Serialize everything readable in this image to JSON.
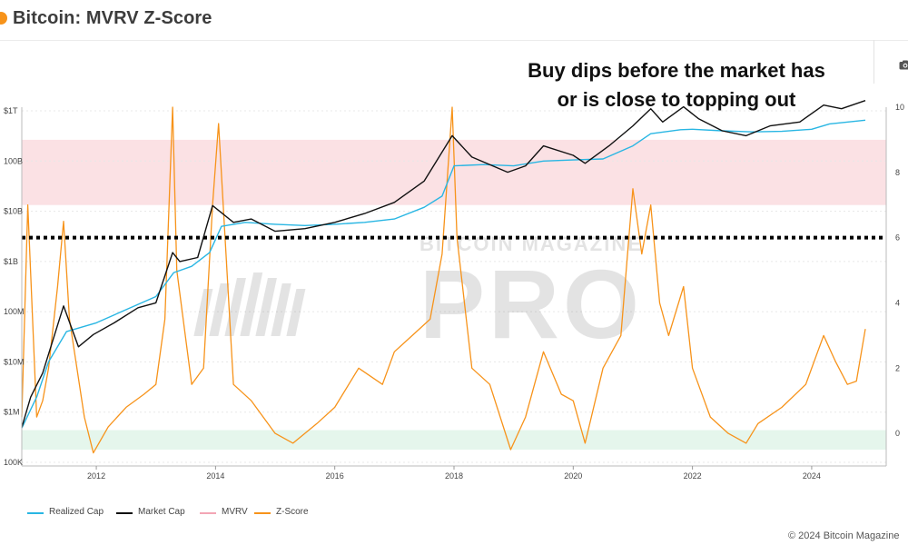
{
  "header": {
    "title": "Bitcoin: MVRV Z-Score"
  },
  "annotation": {
    "line1": "Buy dips before the market has",
    "line2": "or is close to topping out"
  },
  "watermark": {
    "top": "BITCOIN MAGAZINE",
    "main": "PRO"
  },
  "footer": {
    "copyright": "© 2024 Bitcoin Magazine"
  },
  "toolbar": {
    "icon": "camera-icon"
  },
  "colors": {
    "realized_cap": "#29b6e3",
    "market_cap": "#111111",
    "mvrv": "#f3a6b5",
    "z_score": "#f7931a",
    "red_zone": "#fbe1e4",
    "green_zone": "#e5f6ec",
    "threshold_line": "#000000"
  },
  "chart_data": {
    "type": "line",
    "title": "Bitcoin: MVRV Z-Score",
    "x_ticks": [
      "2012",
      "2014",
      "2016",
      "2018",
      "2020",
      "2022",
      "2024"
    ],
    "xlim": [
      2010.75,
      2025.25
    ],
    "y_left_ticks": [
      "100K",
      "$1M",
      "$10M",
      "100M",
      "$1B",
      "$10B",
      "100B",
      "$1T"
    ],
    "y_left_log_range": [
      5,
      12
    ],
    "y_right_ticks": [
      "0",
      "2",
      "4",
      "6",
      "8",
      "10"
    ],
    "ylim_right": [
      -1,
      10
    ],
    "zones": {
      "red": [
        7,
        9
      ],
      "green": [
        -0.5,
        0.1
      ]
    },
    "threshold_line": {
      "axis": "right",
      "value": 6,
      "style": "dotted"
    },
    "grid": true,
    "legend_position": "bottom-left",
    "legend": [
      "Realized Cap",
      "Market Cap",
      "MVRV",
      "Z-Score"
    ],
    "series": [
      {
        "name": "Realized Cap",
        "axis": "left-log",
        "x": [
          2010.75,
          2011.0,
          2011.2,
          2011.5,
          2012.0,
          2012.5,
          2013.0,
          2013.3,
          2013.6,
          2013.9,
          2014.1,
          2014.5,
          2015.0,
          2015.5,
          2016.0,
          2016.5,
          2017.0,
          2017.5,
          2017.8,
          2018.0,
          2018.5,
          2019.0,
          2019.5,
          2020.0,
          2020.5,
          2021.0,
          2021.3,
          2021.8,
          2022.0,
          2022.5,
          2023.0,
          2023.5,
          2024.0,
          2024.3,
          2024.9
        ],
        "values": [
          480000.0,
          2000000.0,
          10000000.0,
          40000000.0,
          60000000.0,
          110000000.0,
          200000000.0,
          600000000.0,
          800000000.0,
          1500000000.0,
          5000000000.0,
          6000000000.0,
          5500000000.0,
          5200000000.0,
          5500000000.0,
          6000000000.0,
          7000000000.0,
          12000000000.0,
          20000000000.0,
          80000000000.0,
          85000000000.0,
          80000000000.0,
          100000000000.0,
          105000000000.0,
          110000000000.0,
          200000000000.0,
          350000000000.0,
          420000000000.0,
          430000000000.0,
          400000000000.0,
          380000000000.0,
          390000000000.0,
          430000000000.0,
          550000000000.0,
          650000000000.0
        ]
      },
      {
        "name": "Market Cap",
        "axis": "left-log",
        "x": [
          2010.75,
          2010.9,
          2011.1,
          2011.45,
          2011.7,
          2011.95,
          2012.3,
          2012.7,
          2013.0,
          2013.28,
          2013.4,
          2013.7,
          2013.95,
          2014.3,
          2014.6,
          2015.0,
          2015.5,
          2016.0,
          2016.5,
          2017.0,
          2017.5,
          2017.97,
          2018.3,
          2018.9,
          2019.2,
          2019.5,
          2020.0,
          2020.2,
          2020.6,
          2021.0,
          2021.3,
          2021.5,
          2021.85,
          2022.1,
          2022.5,
          2022.9,
          2023.3,
          2023.8,
          2024.2,
          2024.5,
          2024.9
        ],
        "values": [
          500000.0,
          2000000.0,
          6000000.0,
          130000000.0,
          20000000.0,
          35000000.0,
          60000000.0,
          120000000.0,
          150000000.0,
          1500000000.0,
          1000000000.0,
          1200000000.0,
          13000000000.0,
          6000000000.0,
          7000000000.0,
          4000000000.0,
          4500000000.0,
          6000000000.0,
          9000000000.0,
          15000000000.0,
          40000000000.0,
          320000000000.0,
          120000000000.0,
          60000000000.0,
          80000000000.0,
          200000000000.0,
          130000000000.0,
          90000000000.0,
          200000000000.0,
          500000000000.0,
          1100000000000.0,
          600000000000.0,
          1200000000000.0,
          700000000000.0,
          400000000000.0,
          320000000000.0,
          500000000000.0,
          600000000000.0,
          1300000000000.0,
          1100000000000.0,
          1600000000000.0
        ]
      },
      {
        "name": "Z-Score",
        "axis": "right",
        "x": [
          2010.75,
          2010.85,
          2011.0,
          2011.1,
          2011.2,
          2011.35,
          2011.45,
          2011.55,
          2011.8,
          2011.95,
          2012.2,
          2012.5,
          2012.8,
          2013.0,
          2013.15,
          2013.28,
          2013.35,
          2013.6,
          2013.8,
          2013.95,
          2014.05,
          2014.3,
          2014.6,
          2015.0,
          2015.3,
          2015.7,
          2016.0,
          2016.4,
          2016.8,
          2017.0,
          2017.3,
          2017.6,
          2017.8,
          2017.97,
          2018.05,
          2018.3,
          2018.6,
          2018.95,
          2019.2,
          2019.5,
          2019.8,
          2020.0,
          2020.2,
          2020.5,
          2020.8,
          2021.0,
          2021.15,
          2021.3,
          2021.45,
          2021.6,
          2021.85,
          2022.0,
          2022.3,
          2022.6,
          2022.9,
          2023.1,
          2023.5,
          2023.9,
          2024.1,
          2024.2,
          2024.4,
          2024.6,
          2024.75,
          2024.9
        ],
        "values": [
          0.5,
          7.0,
          0.5,
          1.0,
          2.0,
          4.5,
          6.5,
          3.5,
          0.5,
          -0.6,
          0.2,
          0.8,
          1.2,
          1.5,
          3.5,
          10.0,
          5.0,
          1.5,
          2.0,
          7.0,
          9.5,
          1.5,
          1.0,
          0.0,
          -0.3,
          0.3,
          0.8,
          2.0,
          1.5,
          2.5,
          3.0,
          3.5,
          5.5,
          10.0,
          6.0,
          2.0,
          1.5,
          -0.5,
          0.5,
          2.5,
          1.2,
          1.0,
          -0.3,
          2.0,
          3.0,
          7.5,
          5.5,
          7.0,
          4.0,
          3.0,
          4.5,
          2.0,
          0.5,
          0.0,
          -0.3,
          0.3,
          0.8,
          1.5,
          2.5,
          3.0,
          2.2,
          1.5,
          1.6,
          3.2
        ]
      }
    ]
  }
}
